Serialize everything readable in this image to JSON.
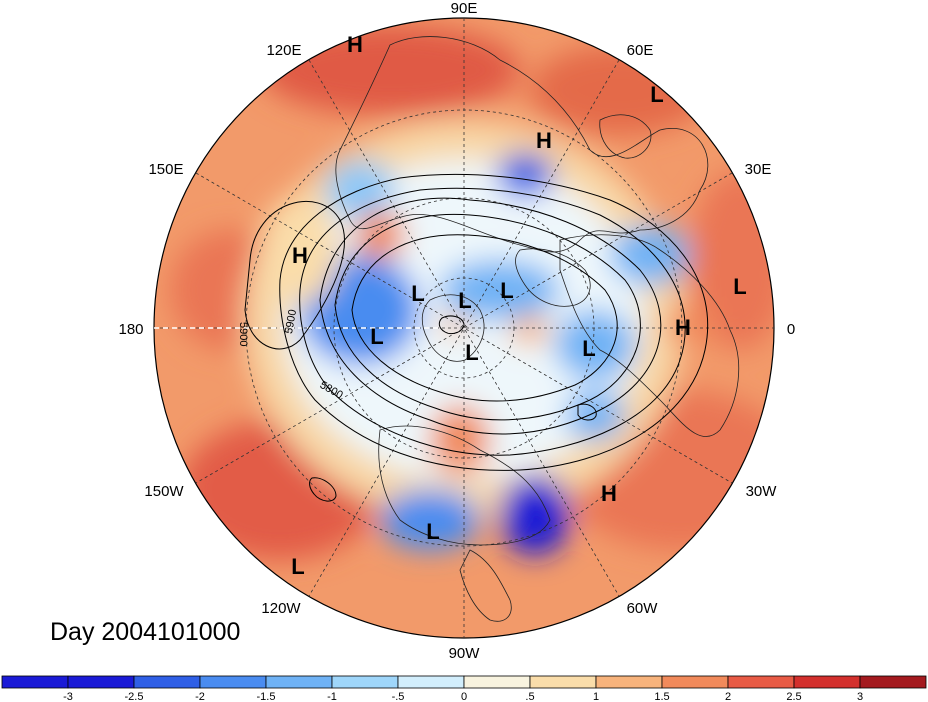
{
  "title": "Day 2004101000",
  "longitude_labels": {
    "n90e": "90E",
    "n120e": "120E",
    "n60e": "60E",
    "n150e": "150E",
    "n30e": "30E",
    "n180": "180",
    "n0": "0",
    "n150w": "150W",
    "n30w": "30W",
    "n120w": "120W",
    "n60w": "60W",
    "n90w": "90W"
  },
  "contour_labels": {
    "c5900a": "5900",
    "c5900b": "5900",
    "c5800": "5800"
  },
  "pressure_centers": {
    "h_siberia": "H",
    "l_europe_ne": "L",
    "h_caspian": "H",
    "h_pacific": "H",
    "l_arctic1": "L",
    "l_arctic2": "L",
    "l_arctic3": "L",
    "l_aleutian": "L",
    "l_pole": "L",
    "l_greenland": "L",
    "l_africa": "L",
    "h_africa": "H",
    "h_atlantic": "H",
    "l_mexico": "L",
    "l_pacific_se": "L"
  },
  "colorbar": {
    "ticks": [
      "-3",
      "-2.5",
      "-2",
      "-1.5",
      "-1",
      "-.5",
      "0",
      ".5",
      "1",
      "1.5",
      "2",
      "2.5",
      "3"
    ],
    "colors": [
      "#1a1ad6",
      "#2f5fe6",
      "#4a8cf0",
      "#6fb2f5",
      "#9fd6fa",
      "#d2eefc",
      "#f8f3df",
      "#faddaa",
      "#f7b37c",
      "#f18a5b",
      "#e85b45",
      "#d3302d",
      "#a41a1f"
    ]
  }
}
